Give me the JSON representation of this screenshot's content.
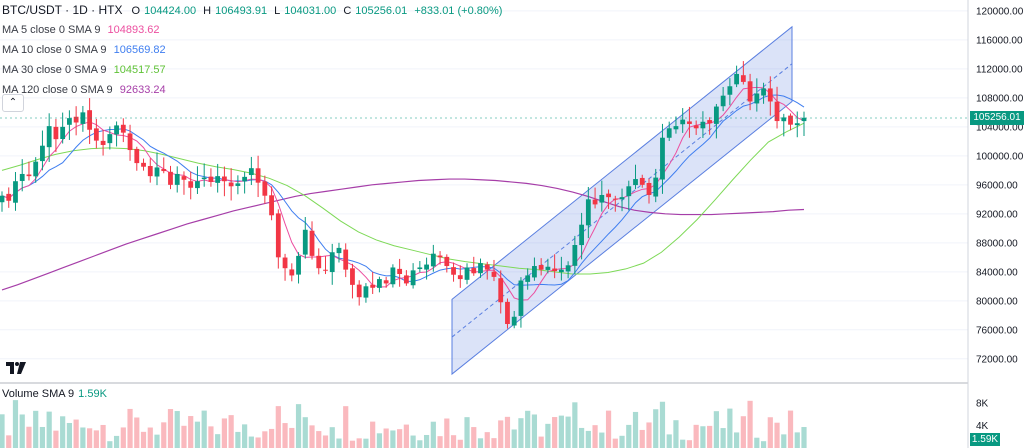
{
  "header": {
    "symbol": "BTC/USDT · 1D · HTX",
    "open_label": "O",
    "open": "104424.00",
    "high_label": "H",
    "high": "106493.91",
    "low_label": "L",
    "low": "104031.00",
    "close_label": "C",
    "close": "105256.01",
    "change": "+833.01 (+0.80%)"
  },
  "indicators": [
    {
      "label": "MA 5 close 0 SMA 9",
      "value": "104893.62",
      "color": "#ec4fa0"
    },
    {
      "label": "MA 10 close 0 SMA 9",
      "value": "106569.82",
      "color": "#3f7ef0"
    },
    {
      "label": "MA 30 close 0 SMA 9",
      "value": "104517.57",
      "color": "#7ed957"
    },
    {
      "label": "MA 120 close 0 SMA 9",
      "value": "92633.24",
      "color": "#a63ea8"
    }
  ],
  "collapse_icon": "chevron-up-icon",
  "volume": {
    "label": "Volume SMA 9",
    "value": "1.59K",
    "axis_ticks": [
      "8K",
      "4K"
    ]
  },
  "last_price": "105256.01",
  "colors": {
    "up": "#089981",
    "down": "#f23645",
    "channel": "#5a7fe0"
  },
  "chart_data": {
    "type": "candlestick",
    "y_ticks": [
      120000,
      116000,
      112000,
      108000,
      104000,
      100000,
      96000,
      92000,
      88000,
      84000,
      80000,
      76000,
      72000
    ],
    "y_tick_labels": [
      "120000.00",
      "116000.00",
      "112000.00",
      "108000.00",
      "104000.00",
      "100000.00",
      "96000.00",
      "92000.00",
      "88000.00",
      "84000.00",
      "80000.00",
      "76000.00",
      "72000.00"
    ],
    "ylim": [
      68800,
      121500
    ],
    "close_series": [
      94500,
      93800,
      96500,
      97500,
      97200,
      99200,
      101400,
      104100,
      102300,
      104000,
      105200,
      104600,
      106000,
      103600,
      102100,
      101500,
      103000,
      104200,
      103200,
      100800,
      99000,
      98500,
      97200,
      98400,
      97900,
      96000,
      97500,
      96700,
      95600,
      96500,
      97000,
      96400,
      97200,
      96500,
      95800,
      96200,
      97100,
      98300,
      96300,
      94500,
      91800,
      86000,
      84500,
      83500,
      86200,
      89800,
      86200,
      84500,
      84200,
      86700,
      87300,
      84300,
      82200,
      80500,
      82000,
      81800,
      83000,
      82400,
      84600,
      83700,
      82400,
      84200,
      84600,
      85000,
      86500,
      86000,
      84800,
      83600,
      83000,
      84600,
      83800,
      85200,
      84300,
      83300,
      79800,
      76800,
      77800,
      82800,
      83500,
      84800,
      84300,
      84700,
      84100,
      84300,
      84900,
      87700,
      90500,
      94000,
      93300,
      94600,
      94300,
      94000,
      94300,
      95800,
      96800,
      96000,
      94600,
      97000,
      102500,
      103800,
      104100,
      105000,
      104400,
      103800,
      104700,
      104500,
      106800,
      108300,
      109600,
      111300,
      110200,
      107500,
      108600,
      109300,
      107500,
      104800,
      105300,
      104300,
      104500,
      105256
    ],
    "ma120": [
      81500,
      82200,
      83000,
      83800,
      84600,
      85400,
      86200,
      87000,
      87800,
      88500,
      89200,
      89900,
      90600,
      91200,
      91800,
      92400,
      92900,
      93400,
      93900,
      94400,
      94800,
      95100,
      95400,
      95700,
      96000,
      96200,
      96400,
      96600,
      96700,
      96800,
      96800,
      96700,
      96600,
      96400,
      96200,
      95900,
      95500,
      95000,
      94400,
      93700,
      93000,
      92500,
      92200,
      92000,
      91900,
      91900,
      91900,
      92000,
      92100,
      92200,
      92300,
      92500,
      92600
    ],
    "ma30": [
      98000,
      98700,
      99500,
      100200,
      100700,
      101000,
      101100,
      101000,
      100700,
      100200,
      99600,
      99000,
      98500,
      98100,
      97600,
      96900,
      95900,
      94500,
      92800,
      91000,
      89500,
      88400,
      87600,
      87000,
      86400,
      85800,
      85400,
      85100,
      84800,
      84500,
      84300,
      84000,
      83700,
      83700,
      83900,
      84400,
      85200,
      86700,
      88800,
      91200,
      93900,
      96700,
      99400,
      101900,
      103300,
      104500
    ],
    "channel_upper": [
      [
        0,
        80200
      ],
      [
        1,
        117800
      ]
    ],
    "channel_lower": [
      [
        0,
        69900
      ],
      [
        1,
        107500
      ]
    ],
    "channel_mid": [
      [
        0,
        75000
      ],
      [
        1,
        112700
      ]
    ],
    "volume_max": 9200
  }
}
